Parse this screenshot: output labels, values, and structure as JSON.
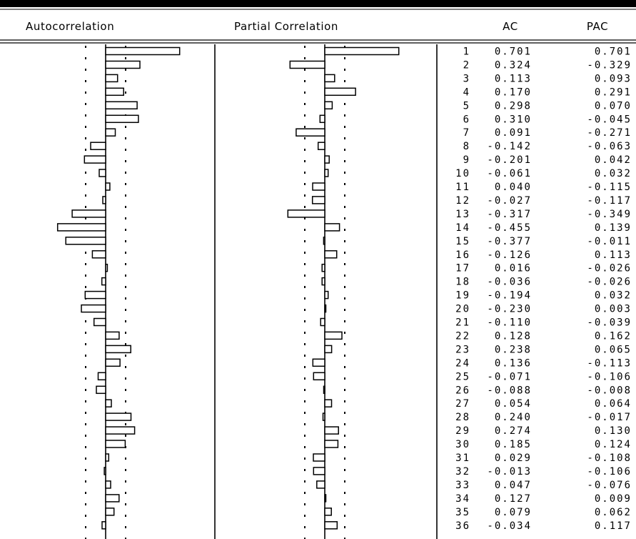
{
  "chart_data": {
    "type": "table",
    "columns": [
      "Autocorrelation",
      "Partial Correlation",
      "",
      "AC",
      "PAC"
    ],
    "lags": [
      1,
      2,
      3,
      4,
      5,
      6,
      7,
      8,
      9,
      10,
      11,
      12,
      13,
      14,
      15,
      16,
      17,
      18,
      19,
      20,
      21,
      22,
      23,
      24,
      25,
      26,
      27,
      28,
      29,
      30,
      31,
      32,
      33,
      34,
      35,
      36
    ],
    "ac": [
      "0.701",
      "0.324",
      "0.113",
      "0.170",
      "0.298",
      "0.310",
      "0.091",
      "-0.142",
      "-0.201",
      "-0.061",
      "0.040",
      "-0.027",
      "-0.317",
      "-0.455",
      "-0.377",
      "-0.126",
      "0.016",
      "-0.036",
      "-0.194",
      "-0.230",
      "-0.110",
      "0.128",
      "0.238",
      "0.136",
      "-0.071",
      "-0.088",
      "0.054",
      "0.240",
      "0.274",
      "0.185",
      "0.029",
      "-0.013",
      "0.047",
      "0.127",
      "0.079",
      "-0.034"
    ],
    "pac": [
      "0.701",
      "-0.329",
      "0.093",
      "0.291",
      "0.070",
      "-0.045",
      "-0.271",
      "-0.063",
      "0.042",
      "0.032",
      "-0.115",
      "-0.117",
      "-0.349",
      "0.139",
      "-0.011",
      "0.113",
      "-0.026",
      "-0.026",
      "0.032",
      "0.003",
      "-0.039",
      "0.162",
      "0.065",
      "-0.113",
      "-0.106",
      "-0.008",
      "0.064",
      "-0.017",
      "0.130",
      "0.124",
      "-0.108",
      "-0.106",
      "-0.076",
      "0.009",
      "0.062",
      "0.117"
    ]
  }
}
